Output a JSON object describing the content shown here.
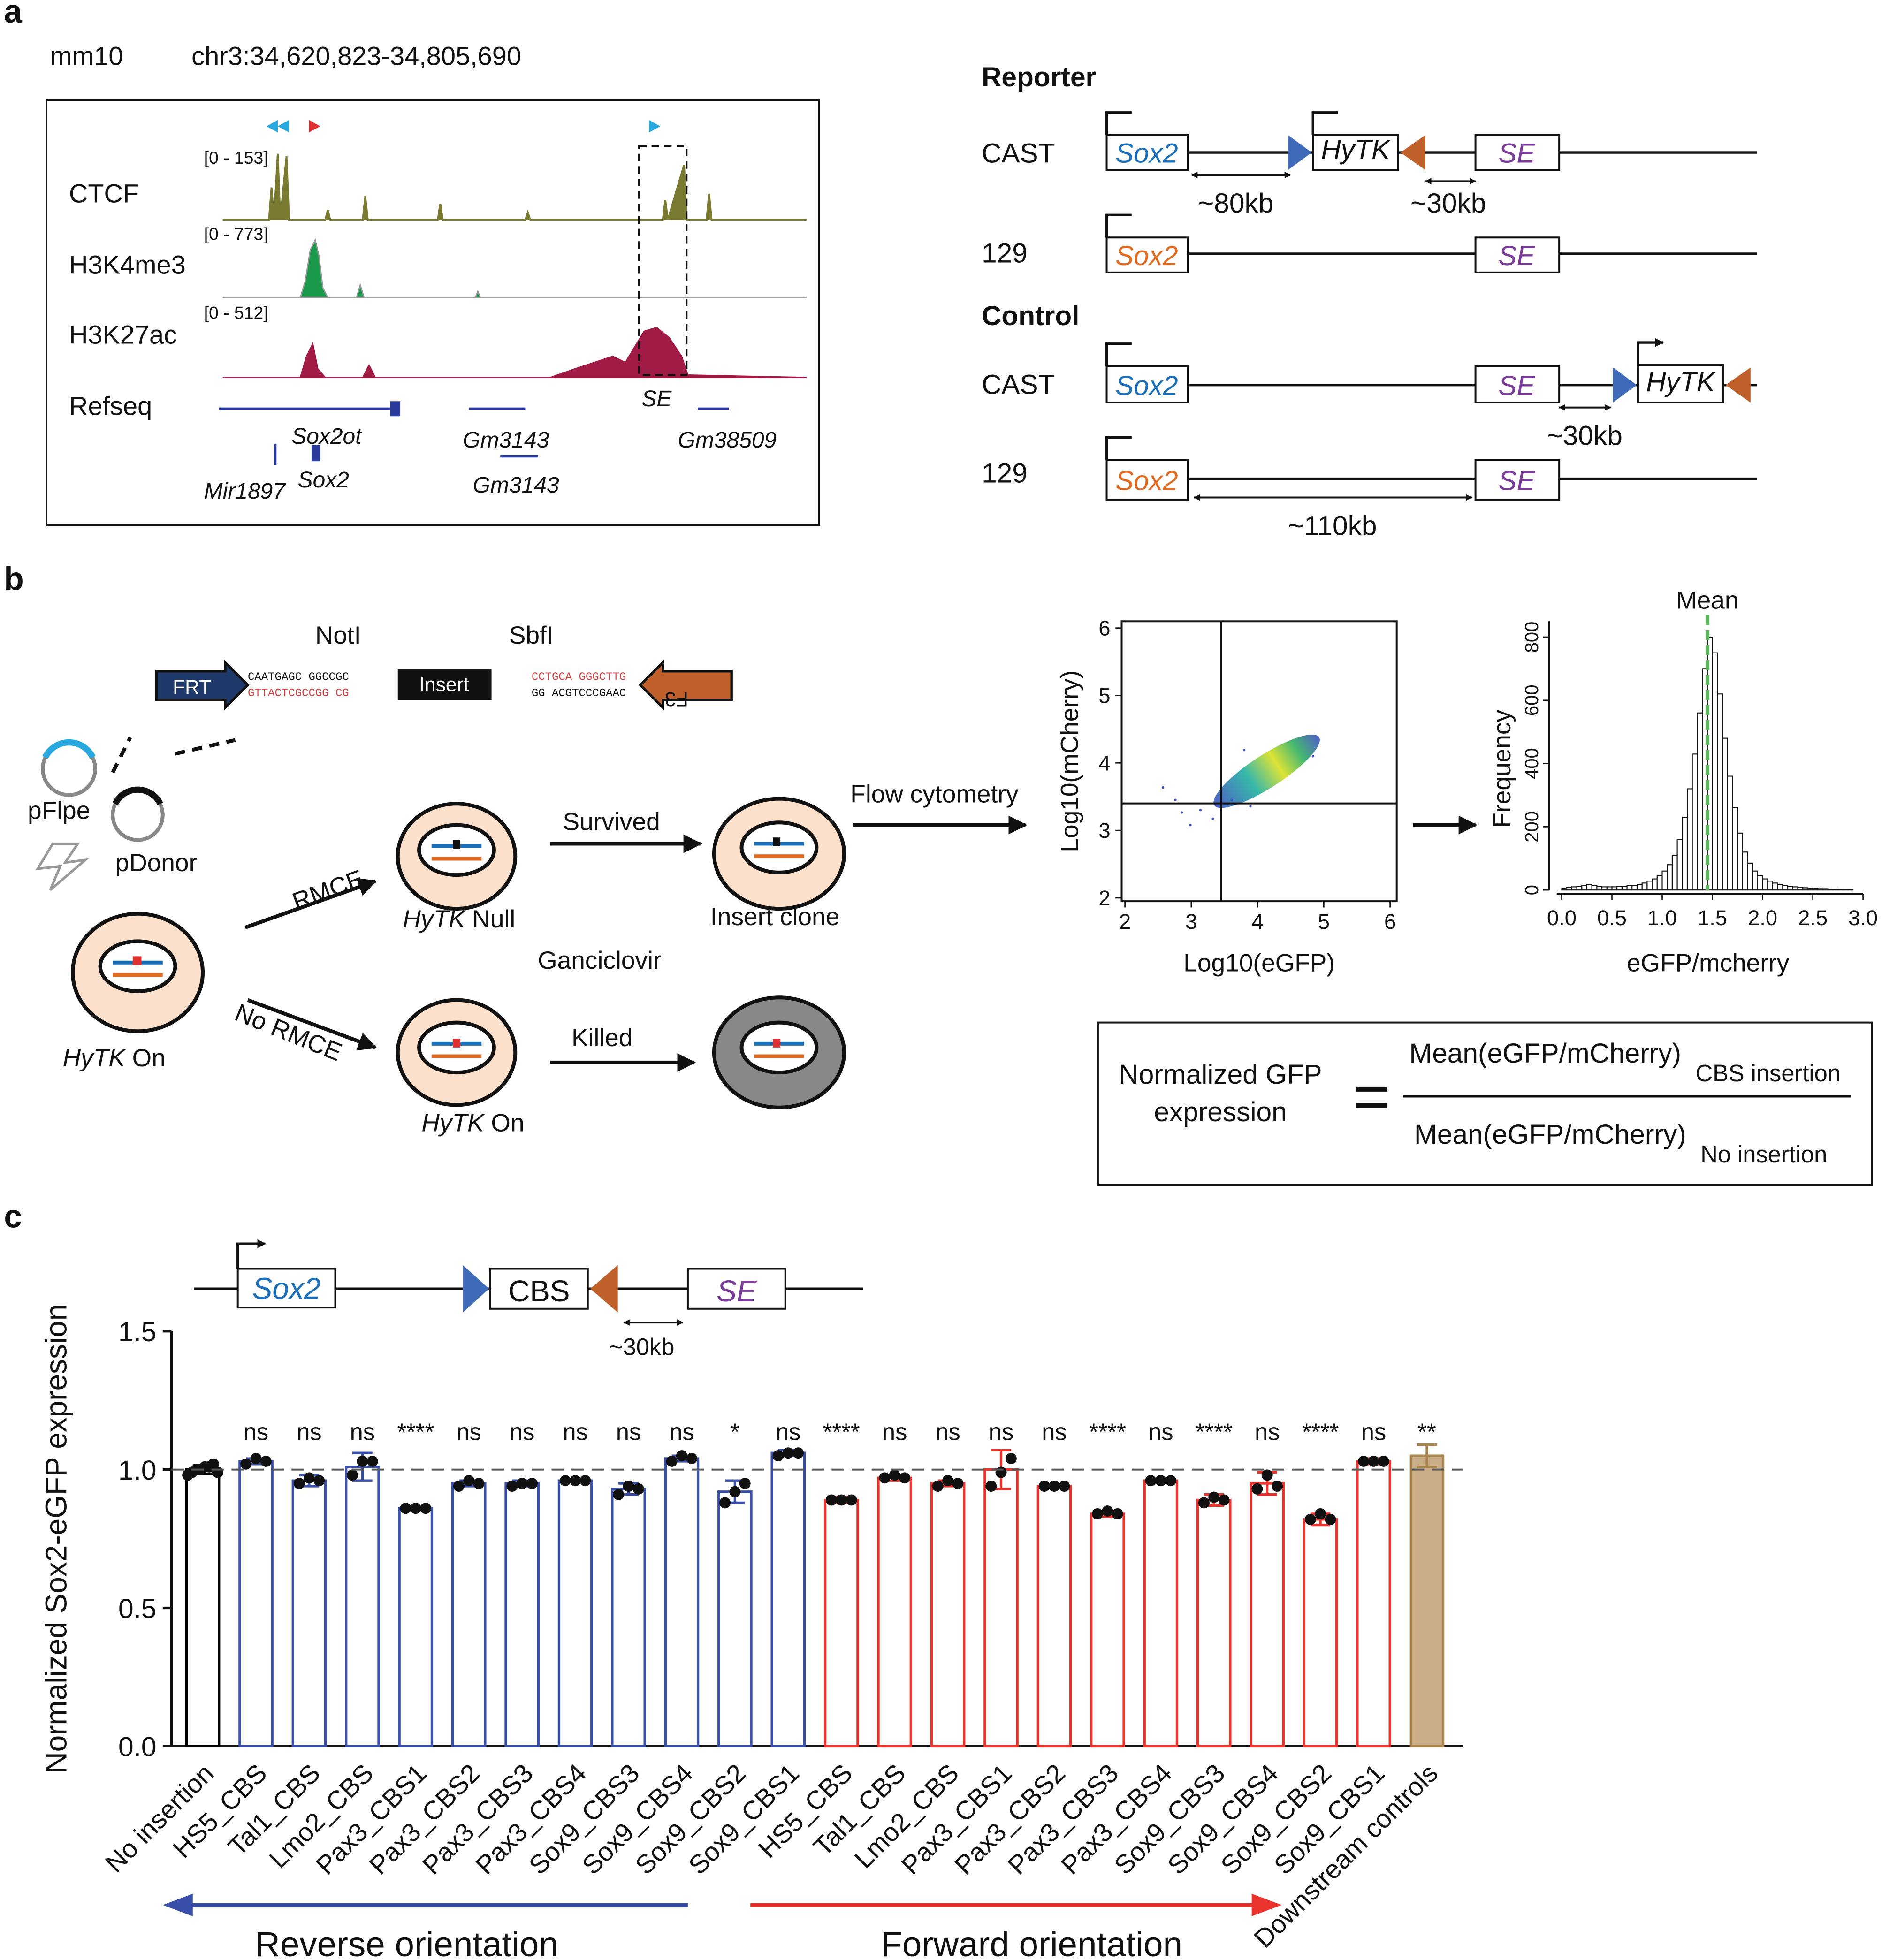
{
  "panel_a": {
    "label": "a",
    "assembly": "mm10",
    "locus": "chr3:34,620,823-34,805,690",
    "tracks": [
      {
        "name": "CTCF",
        "range": "[0 - 153]"
      },
      {
        "name": "H3K4me3",
        "range": "[0 - 773]"
      },
      {
        "name": "H3K27ac",
        "range": "[0 - 512]"
      },
      {
        "name": "Refseq"
      }
    ],
    "genes": [
      "Sox2ot",
      "Gm3143",
      "Gm38509",
      "Mir1897",
      "Sox2",
      "Gm3143"
    ],
    "se": "SE",
    "constructs": {
      "reporter": "Reporter",
      "control": "Control",
      "cast": "CAST",
      "s129": "129",
      "sox2": "Sox2",
      "hytk": "HyTK",
      "se": "SE",
      "d80": "~80kb",
      "d30": "~30kb",
      "d110": "~110kb"
    }
  },
  "panel_b": {
    "label": "b",
    "noti": "NotI",
    "sbfi": "SbfI",
    "frt": "FRT",
    "insert": "Insert",
    "f3": "F3",
    "seq": [
      "CAATGAGC GGCCGC",
      "GTTACTCGCCGG CG",
      "CCTGCA GGGCTTG",
      "GG ACGTCCCGAAC"
    ],
    "pflpe": "pFlpe",
    "pdonor": "pDonor",
    "rmce": "RMCE",
    "no_rmce": "No RMCE",
    "hytk": "HyTK",
    "on": "On",
    "null": "Null",
    "survived": "Survived",
    "ganciclovir": "Ganciclovir",
    "killed": "Killed",
    "insert_clone": "Insert clone",
    "flow": "Flow cytometry",
    "formula": {
      "lhs1": "Normalized GFP",
      "lhs2": "expression",
      "eq": "=",
      "num": "Mean(eGFP/mCherry)",
      "num_sub": "CBS insertion",
      "den": "Mean(eGFP/mCherry)",
      "den_sub": "No insertion"
    }
  },
  "panel_c": {
    "label": "c",
    "sox2": "Sox2",
    "cbs": "CBS",
    "se": "SE",
    "dist": "~30kb"
  },
  "chart_data": [
    {
      "type": "scatter",
      "xlabel": "Log10(eGFP)",
      "ylabel": "Log10(mCherry)",
      "xlim": [
        1.95,
        6.1
      ],
      "ylim": [
        1.95,
        6.1
      ],
      "xticks": [
        2,
        3,
        4,
        5,
        6
      ],
      "yticks": [
        2,
        3,
        4,
        5,
        6
      ],
      "x_gate": 3.45,
      "y_gate": 3.4
    },
    {
      "type": "histogram",
      "xlabel": "eGFP/mcherry",
      "ylabel": "Frequency",
      "mean": 1.45,
      "mean_label": "Mean",
      "mean_color": "#5cb85c",
      "color": "#ffffff",
      "bins": [
        0,
        0.05,
        0.1,
        0.15,
        0.2,
        0.25,
        0.3,
        0.35,
        0.4,
        0.45,
        0.5,
        0.55,
        0.6,
        0.65,
        0.7,
        0.75,
        0.8,
        0.85,
        0.9,
        0.95,
        1.0,
        1.05,
        1.1,
        1.15,
        1.2,
        1.25,
        1.3,
        1.35,
        1.4,
        1.45,
        1.5,
        1.55,
        1.6,
        1.65,
        1.7,
        1.75,
        1.8,
        1.85,
        1.9,
        1.95,
        2.0,
        2.05,
        2.1,
        2.15,
        2.2,
        2.25,
        2.3,
        2.35,
        2.4,
        2.45,
        2.5,
        2.55,
        2.6,
        2.65,
        2.7,
        2.75,
        2.8,
        2.85,
        2.9
      ],
      "counts": [
        5,
        8,
        10,
        12,
        15,
        18,
        15,
        12,
        10,
        10,
        10,
        12,
        12,
        14,
        15,
        18,
        22,
        28,
        35,
        45,
        60,
        80,
        110,
        160,
        230,
        320,
        430,
        560,
        700,
        800,
        750,
        620,
        480,
        360,
        260,
        180,
        120,
        85,
        60,
        45,
        35,
        28,
        22,
        18,
        15,
        12,
        10,
        8,
        7,
        6,
        5,
        4,
        4,
        3,
        3,
        2,
        2,
        2
      ],
      "xlim": [
        -0.05,
        3.0
      ],
      "ylim": [
        0,
        850
      ],
      "xticks": [
        {
          "value": 0,
          "label": "0.0"
        },
        {
          "value": 0.5,
          "label": "0.5"
        },
        {
          "value": 1,
          "label": "1.0"
        },
        {
          "value": 1.5,
          "label": "1.5"
        },
        {
          "value": 2,
          "label": "2.0"
        },
        {
          "value": 2.5,
          "label": "2.5"
        },
        {
          "value": 3,
          "label": "3.0"
        }
      ],
      "yticks": [
        0,
        200,
        400,
        600,
        800
      ]
    },
    {
      "type": "bar",
      "ylabel": "Normalized Sox2-eGFP expression",
      "categories": [
        "No insertion",
        "HS5_CBS",
        "Tal1_CBS",
        "Lmo2_CBS",
        "Pax3_CBS1",
        "Pax3_CBS2",
        "Pax3_CBS3",
        "Pax3_CBS4",
        "Sox9_CBS3",
        "Sox9_CBS4",
        "Sox9_CBS2",
        "Sox9_CBS1",
        "HS5_CBS",
        "Tal1_CBS",
        "Lmo2_CBS",
        "Pax3_CBS1",
        "Pax3_CBS2",
        "Pax3_CBS3",
        "Pax3_CBS4",
        "Sox9_CBS3",
        "Sox9_CBS4",
        "Sox9_CBS2",
        "Sox9_CBS1",
        "Downstream controls"
      ],
      "values": [
        1.0,
        1.03,
        0.96,
        1.01,
        0.86,
        0.95,
        0.95,
        0.96,
        0.93,
        1.04,
        0.92,
        1.06,
        0.89,
        0.97,
        0.95,
        1.0,
        0.94,
        0.84,
        0.96,
        0.89,
        0.95,
        0.82,
        1.03,
        1.05
      ],
      "errors": [
        0.015,
        0.01,
        0.02,
        0.05,
        0.005,
        0.01,
        0.01,
        0.005,
        0.02,
        0.01,
        0.04,
        0.01,
        0.01,
        0.01,
        0.01,
        0.07,
        0.005,
        0.01,
        0.003,
        0.02,
        0.04,
        0.02,
        0.01,
        0.04
      ],
      "points": [
        [
          0.98,
          0.99,
          1.0,
          1.0,
          1.01,
          1.01,
          1.02,
          0.99
        ],
        [
          1.02,
          1.04,
          1.03
        ],
        [
          0.95,
          0.97,
          0.96
        ],
        [
          0.98,
          1.03,
          1.03
        ],
        [
          0.86,
          0.86,
          0.86
        ],
        [
          0.94,
          0.96,
          0.95
        ],
        [
          0.94,
          0.95,
          0.95
        ],
        [
          0.96,
          0.96,
          0.96
        ],
        [
          0.91,
          0.94,
          0.93
        ],
        [
          1.03,
          1.05,
          1.04
        ],
        [
          0.88,
          0.92,
          0.95
        ],
        [
          1.05,
          1.06,
          1.06
        ],
        [
          0.89,
          0.89,
          0.89
        ],
        [
          0.97,
          0.98,
          0.97
        ],
        [
          0.94,
          0.96,
          0.95
        ],
        [
          0.94,
          0.99,
          1.04
        ],
        [
          0.94,
          0.94,
          0.94
        ],
        [
          0.84,
          0.85,
          0.84
        ],
        [
          0.96,
          0.96,
          0.96
        ],
        [
          0.88,
          0.9,
          0.89
        ],
        [
          0.93,
          0.98,
          0.94
        ],
        [
          0.82,
          0.84,
          0.82
        ],
        [
          1.03,
          1.03,
          1.03
        ],
        null
      ],
      "significance": [
        null,
        "ns",
        "ns",
        "ns",
        "****",
        "ns",
        "ns",
        "ns",
        "ns",
        "ns",
        "*",
        "ns",
        "****",
        "ns",
        "ns",
        "ns",
        "ns",
        "****",
        "ns",
        "****",
        "ns",
        "****",
        "ns",
        "**"
      ],
      "colors": [
        "#000000",
        "#3a4fa8",
        "#3a4fa8",
        "#3a4fa8",
        "#3a4fa8",
        "#3a4fa8",
        "#3a4fa8",
        "#3a4fa8",
        "#3a4fa8",
        "#3a4fa8",
        "#3a4fa8",
        "#3a4fa8",
        "#e8342c",
        "#e8342c",
        "#e8342c",
        "#e8342c",
        "#e8342c",
        "#e8342c",
        "#e8342c",
        "#e8342c",
        "#e8342c",
        "#e8342c",
        "#e8342c",
        "#a88550"
      ],
      "fills": [
        "#ffffff",
        "#ffffff",
        "#ffffff",
        "#ffffff",
        "#ffffff",
        "#ffffff",
        "#ffffff",
        "#ffffff",
        "#ffffff",
        "#ffffff",
        "#ffffff",
        "#ffffff",
        "#ffffff",
        "#ffffff",
        "#ffffff",
        "#ffffff",
        "#ffffff",
        "#ffffff",
        "#ffffff",
        "#ffffff",
        "#ffffff",
        "#ffffff",
        "#ffffff",
        "#c9ad87"
      ],
      "reference_line": 1.0,
      "ylim": [
        0,
        1.5
      ],
      "yticks": [
        {
          "value": 0,
          "label": "0.0"
        },
        {
          "value": 0.5,
          "label": "0.5"
        },
        {
          "value": 1,
          "label": "1.0"
        },
        {
          "value": 1.5,
          "label": "1.5"
        }
      ],
      "groups": [
        {
          "label": "Reverse orientation",
          "color": "#3a4fa8"
        },
        {
          "label": "Forward orientation",
          "color": "#e8342c"
        }
      ]
    }
  ]
}
